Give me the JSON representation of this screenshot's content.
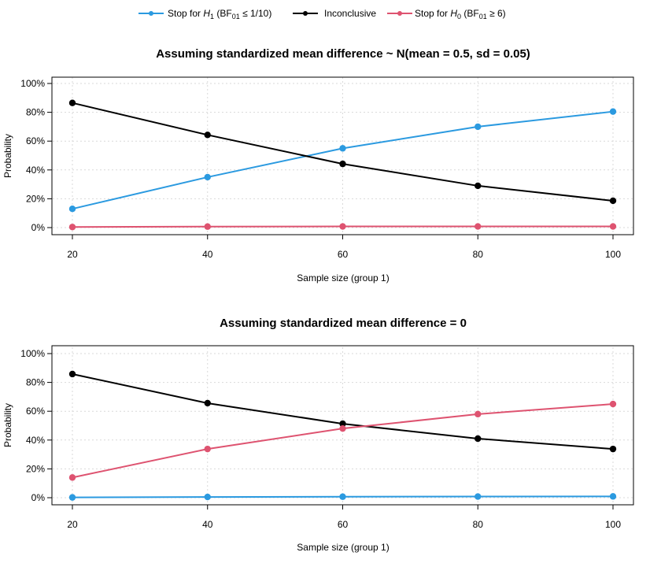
{
  "colors": {
    "stop_h1": "#2b9ae0",
    "inconclusive": "#000000",
    "stop_h0": "#de5370",
    "grid": "#d9d9d9",
    "frame": "#000000"
  },
  "legend": {
    "items": [
      {
        "prefix": "Stop for ",
        "symbol": "H",
        "symbol_sub": "1",
        "middle": " (BF",
        "bf_sub": "01",
        "suffix": " ≤ 1/10)",
        "color_key": "stop_h1"
      },
      {
        "prefix": "Inconclusive",
        "symbol": "",
        "symbol_sub": "",
        "middle": "",
        "bf_sub": "",
        "suffix": "",
        "color_key": "inconclusive"
      },
      {
        "prefix": "Stop for ",
        "symbol": "H",
        "symbol_sub": "0",
        "middle": " (BF",
        "bf_sub": "01",
        "suffix": " ≥ 6)",
        "color_key": "stop_h0"
      }
    ]
  },
  "chart_data": [
    {
      "type": "line",
      "title": "Assuming standardized mean difference ~ N(mean = 0.5, sd = 0.05)",
      "xlabel": "Sample size (group 1)",
      "ylabel": "Probability",
      "x": [
        20,
        40,
        60,
        80,
        100
      ],
      "x_ticks": [
        "20",
        "40",
        "60",
        "80",
        "100"
      ],
      "y_ticks": [
        "0%",
        "20%",
        "40%",
        "60%",
        "80%",
        "100%"
      ],
      "xlim": [
        20,
        100
      ],
      "ylim": [
        0,
        1
      ],
      "grid": true,
      "legend_position": "top",
      "series": [
        {
          "key": "stop_h1",
          "values": [
            0.13,
            0.35,
            0.55,
            0.7,
            0.805
          ]
        },
        {
          "key": "inconclusive",
          "values": [
            0.865,
            0.643,
            0.442,
            0.29,
            0.186
          ]
        },
        {
          "key": "stop_h0",
          "values": [
            0.004,
            0.007,
            0.008,
            0.008,
            0.008
          ]
        }
      ]
    },
    {
      "type": "line",
      "title": "Assuming standardized mean difference = 0",
      "xlabel": "Sample size (group 1)",
      "ylabel": "Probability",
      "x": [
        20,
        40,
        60,
        80,
        100
      ],
      "x_ticks": [
        "20",
        "40",
        "60",
        "80",
        "100"
      ],
      "y_ticks": [
        "0%",
        "20%",
        "40%",
        "60%",
        "80%",
        "100%"
      ],
      "xlim": [
        20,
        100
      ],
      "ylim": [
        0,
        1
      ],
      "grid": true,
      "legend_position": "top",
      "series": [
        {
          "key": "stop_h1",
          "values": [
            0.002,
            0.005,
            0.007,
            0.008,
            0.009
          ]
        },
        {
          "key": "inconclusive",
          "values": [
            0.858,
            0.656,
            0.513,
            0.41,
            0.338
          ]
        },
        {
          "key": "stop_h0",
          "values": [
            0.14,
            0.338,
            0.48,
            0.58,
            0.65
          ]
        }
      ]
    }
  ]
}
